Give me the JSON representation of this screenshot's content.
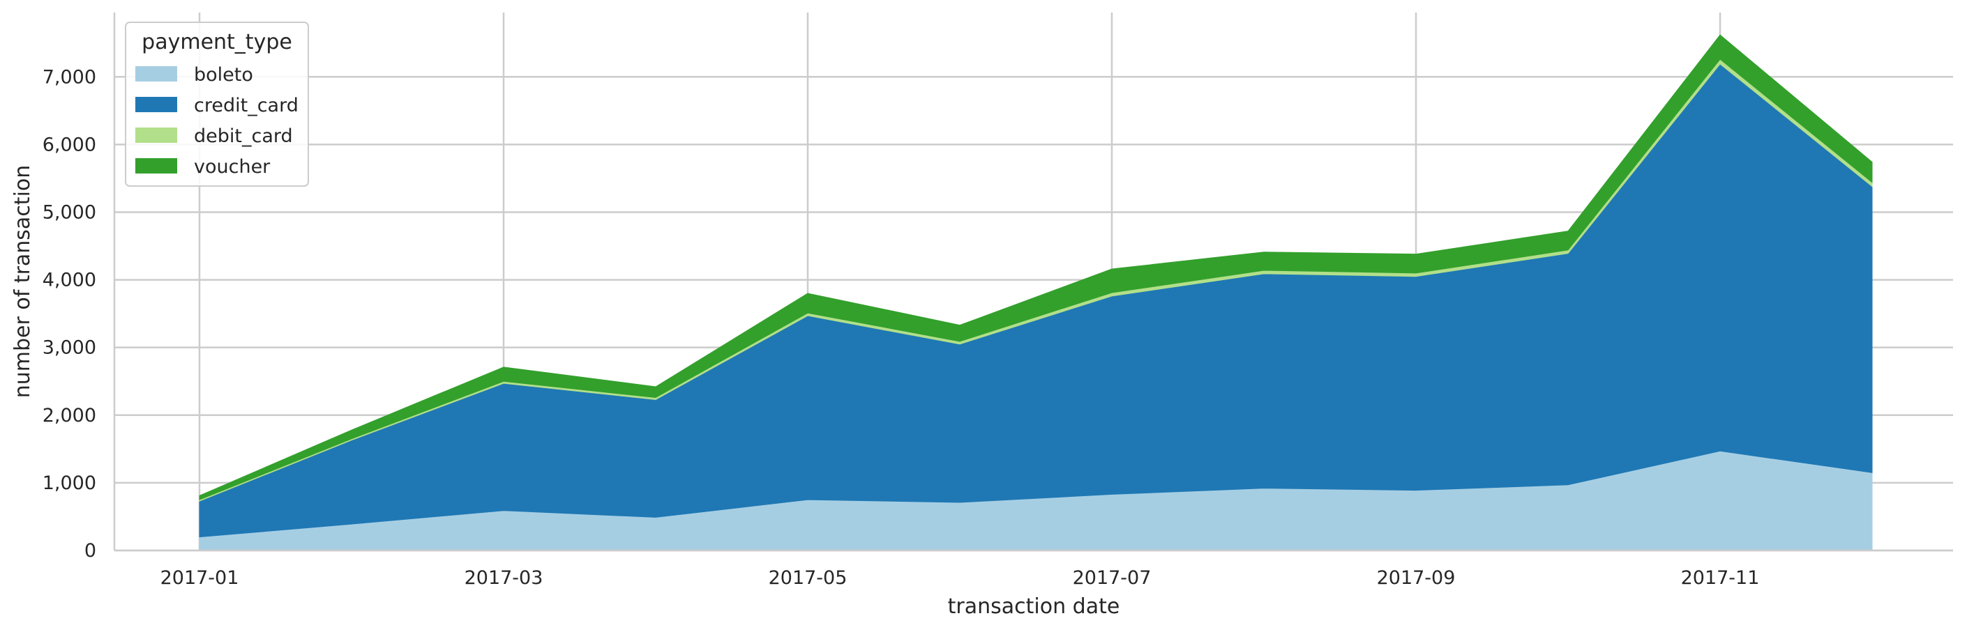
{
  "chart_data": {
    "type": "area",
    "stacked": true,
    "title": "",
    "xlabel": "transaction date",
    "ylabel": "number of transaction",
    "x": [
      "2017-01",
      "2017-02",
      "2017-03",
      "2017-04",
      "2017-05",
      "2017-06",
      "2017-07",
      "2017-08",
      "2017-09",
      "2017-10",
      "2017-11",
      "2017-12"
    ],
    "x_tick_labels": [
      "2017-01",
      "2017-03",
      "2017-05",
      "2017-07",
      "2017-09",
      "2017-11"
    ],
    "y_tick_labels": [
      "0",
      "1,000",
      "2,000",
      "3,000",
      "4,000",
      "5,000",
      "6,000",
      "7,000"
    ],
    "ylim": [
      0,
      7950
    ],
    "grid": true,
    "legend": {
      "title": "payment_type",
      "position": "top-left"
    },
    "series": [
      {
        "name": "boleto",
        "color": "#a6cee3",
        "values": [
          200,
          390,
          590,
          490,
          750,
          710,
          830,
          920,
          890,
          970,
          1470,
          1150
        ]
      },
      {
        "name": "credit_card",
        "color": "#1f78b4",
        "values": [
          530,
          1240,
          1880,
          1740,
          2720,
          2340,
          2930,
          3170,
          3160,
          3420,
          5720,
          4230
        ]
      },
      {
        "name": "debit_card",
        "color": "#b2df8a",
        "values": [
          20,
          20,
          30,
          30,
          40,
          40,
          50,
          50,
          50,
          50,
          70,
          60
        ]
      },
      {
        "name": "voucher",
        "color": "#33a02c",
        "values": [
          60,
          130,
          210,
          160,
          290,
          240,
          350,
          270,
          280,
          280,
          360,
          300
        ]
      }
    ]
  }
}
